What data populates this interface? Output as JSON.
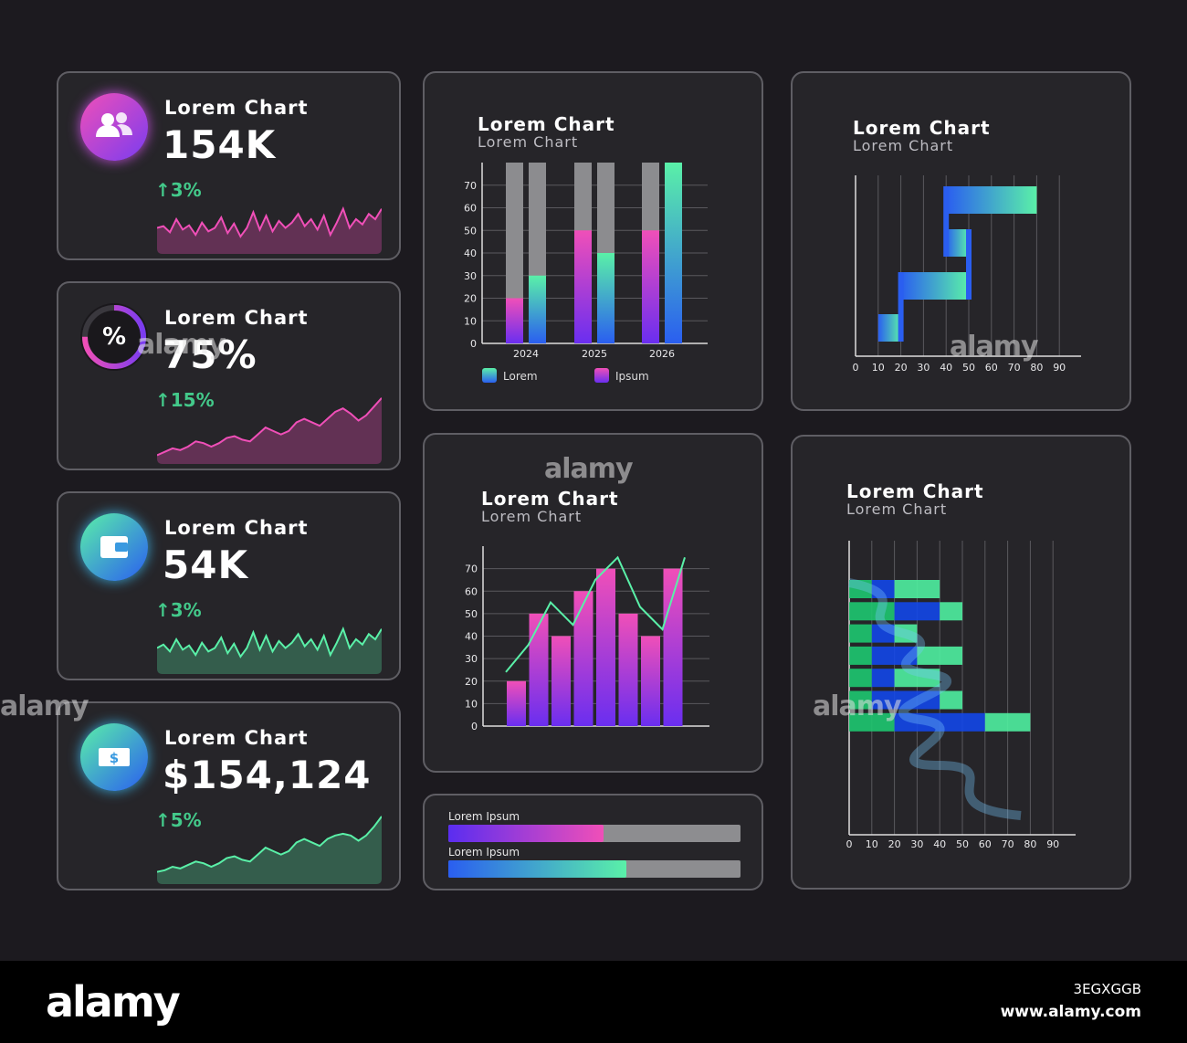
{
  "stats": [
    {
      "title": "Lorem Chart",
      "value": "154K",
      "change": "↑3%",
      "icon": "users-icon",
      "theme": "pink",
      "spark": [
        30,
        32,
        25,
        40,
        28,
        33,
        22,
        36,
        26,
        30,
        42,
        24,
        35,
        20,
        30,
        48,
        28,
        44,
        26,
        38,
        30,
        36,
        46,
        32,
        40,
        28,
        44,
        22,
        36,
        52,
        30,
        40,
        34,
        46,
        40,
        52
      ]
    },
    {
      "title": "Lorem Chart",
      "value": "75%",
      "change": "↑15%",
      "icon": "percent-icon",
      "theme": "pink",
      "progress": 0.75,
      "spark": [
        10,
        14,
        18,
        16,
        20,
        26,
        24,
        20,
        24,
        30,
        32,
        28,
        26,
        34,
        42,
        38,
        34,
        38,
        48,
        52,
        48,
        44,
        52,
        60,
        64,
        58,
        50,
        56,
        66,
        76
      ]
    },
    {
      "title": "Lorem Chart",
      "value": "54K",
      "change": "↑3%",
      "icon": "wallet-icon",
      "theme": "green",
      "spark": [
        30,
        34,
        26,
        40,
        28,
        33,
        22,
        36,
        26,
        30,
        42,
        24,
        35,
        20,
        30,
        48,
        28,
        44,
        26,
        38,
        30,
        36,
        46,
        32,
        40,
        28,
        44,
        22,
        36,
        52,
        30,
        40,
        34,
        46,
        40,
        52
      ]
    },
    {
      "title": "Lorem Chart",
      "value": "$154,124",
      "change": "↑5%",
      "icon": "money-icon",
      "theme": "green",
      "spark": [
        14,
        16,
        20,
        18,
        22,
        26,
        24,
        20,
        24,
        30,
        32,
        28,
        26,
        34,
        42,
        38,
        34,
        38,
        48,
        52,
        48,
        44,
        52,
        56,
        58,
        56,
        50,
        56,
        66,
        78
      ]
    }
  ],
  "bar_chart": {
    "title": "Lorem Chart",
    "subtitle": "Lorem Chart",
    "legend": [
      "Lorem",
      "Ipsum"
    ]
  },
  "combo_chart": {
    "title": "Lorem Chart",
    "subtitle": "Lorem Chart"
  },
  "gantt_chart": {
    "title": "Lorem Chart",
    "subtitle": "Lorem Chart"
  },
  "stack_chart": {
    "title": "Lorem Chart",
    "subtitle": "Lorem Chart"
  },
  "progress": [
    {
      "label": "Lorem Ipsum",
      "value": 0.53,
      "gradient": [
        "#5a2df0",
        "#f04fb8"
      ]
    },
    {
      "label": "Lorem Ipsum",
      "value": 0.61,
      "gradient": [
        "#2a5ef0",
        "#5af0a8"
      ]
    }
  ],
  "chart_data": [
    {
      "type": "bar",
      "categories": [
        "2024",
        "2025",
        "2026"
      ],
      "series": [
        {
          "name": "Ipsum",
          "values": [
            [
              20,
              50,
              50
            ],
            [
              30,
              40,
              80
            ]
          ]
        }
      ],
      "groups": [
        {
          "category": "2024",
          "bars": [
            {
              "series": "Ipsum",
              "value": 20
            },
            {
              "series": "Lorem",
              "value": 30
            }
          ]
        },
        {
          "category": "2025",
          "bars": [
            {
              "series": "Ipsum",
              "value": 50
            },
            {
              "series": "Lorem",
              "value": 40
            }
          ]
        },
        {
          "category": "2026",
          "bars": [
            {
              "series": "Ipsum",
              "value": 50
            },
            {
              "series": "Lorem",
              "value": 80
            }
          ]
        }
      ],
      "yticks": [
        0,
        10,
        20,
        30,
        40,
        50,
        60,
        70
      ],
      "ylim": [
        0,
        80
      ]
    },
    {
      "type": "bar",
      "bars": [
        20,
        50,
        40,
        60,
        70,
        50,
        40,
        70
      ],
      "line": [
        24,
        36,
        55,
        45,
        65,
        75,
        53,
        43,
        75
      ],
      "yticks": [
        0,
        10,
        20,
        30,
        40,
        50,
        60,
        70
      ],
      "ylim": [
        0,
        80
      ]
    },
    {
      "type": "bar",
      "orientation": "horizontal-gantt",
      "tasks": [
        {
          "start": 10,
          "end": 20,
          "row": 0
        },
        {
          "start": 20,
          "end": 50,
          "row": 1
        },
        {
          "start": 40,
          "end": 50,
          "row": 2
        },
        {
          "start": 40,
          "end": 80,
          "row": 3
        }
      ],
      "xticks": [
        0,
        10,
        20,
        30,
        40,
        50,
        60,
        70,
        80,
        90
      ],
      "xlim": [
        0,
        100
      ]
    },
    {
      "type": "bar",
      "orientation": "horizontal-stacked",
      "rows": [
        [
          10,
          10,
          20
        ],
        [
          20,
          20,
          10
        ],
        [
          10,
          10,
          10
        ],
        [
          10,
          20,
          20
        ],
        [
          10,
          10,
          20
        ],
        [
          10,
          30,
          10
        ],
        [
          20,
          40,
          20
        ]
      ],
      "xticks": [
        0,
        10,
        20,
        30,
        40,
        50,
        60,
        70,
        80,
        90
      ],
      "xlim": [
        0,
        100
      ]
    }
  ],
  "watermark": {
    "text": "alamy",
    "image_id": "3EGXGGB",
    "url": "www.alamy.com"
  }
}
